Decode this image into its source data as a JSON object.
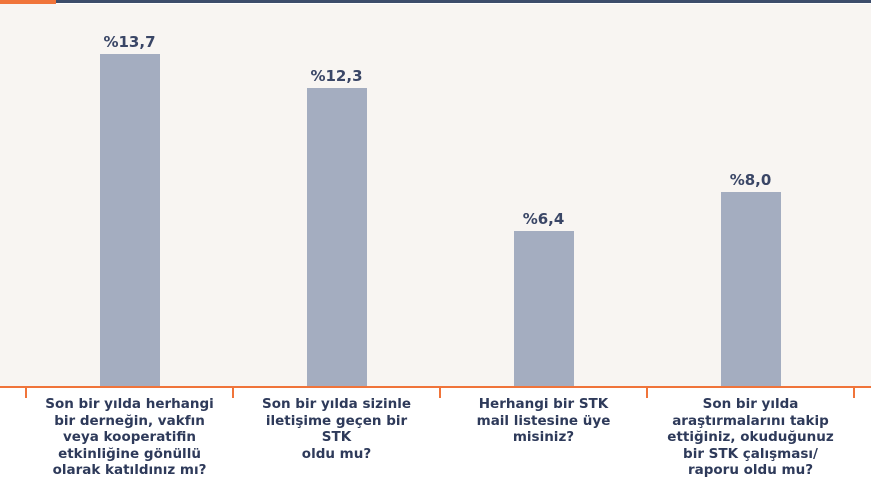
{
  "chart_data": {
    "type": "bar",
    "categories": [
      "Son bir yılda herhangi\nbir derneğin, vakfın\nveya kooperatifin\netkinliğine gönüllü\nolarak katıldınız mı?",
      "Son bir yılda sizinle\niletişime geçen bir STK\noldu mu?",
      "Herhangi bir STK\nmail listesine üye\nmisiniz?",
      "Son bir yılda\naraştırmalarını takip\nettiğiniz, okuduğunuz\nbir STK çalışması/\nraporu oldu mu?"
    ],
    "values": [
      13.7,
      12.3,
      6.4,
      8.0
    ],
    "data_labels": [
      "%13,7",
      "%12,3",
      "%6,4",
      "%8,0"
    ],
    "ylim": [
      0,
      16
    ],
    "grid": false,
    "legend": "none",
    "colors": {
      "bar": "#a4adc0",
      "axis": "#f0743a",
      "header_rule": "#3d4d6b",
      "plot_background": "#f8f5f2",
      "label_text": "#2e3a5a"
    }
  }
}
